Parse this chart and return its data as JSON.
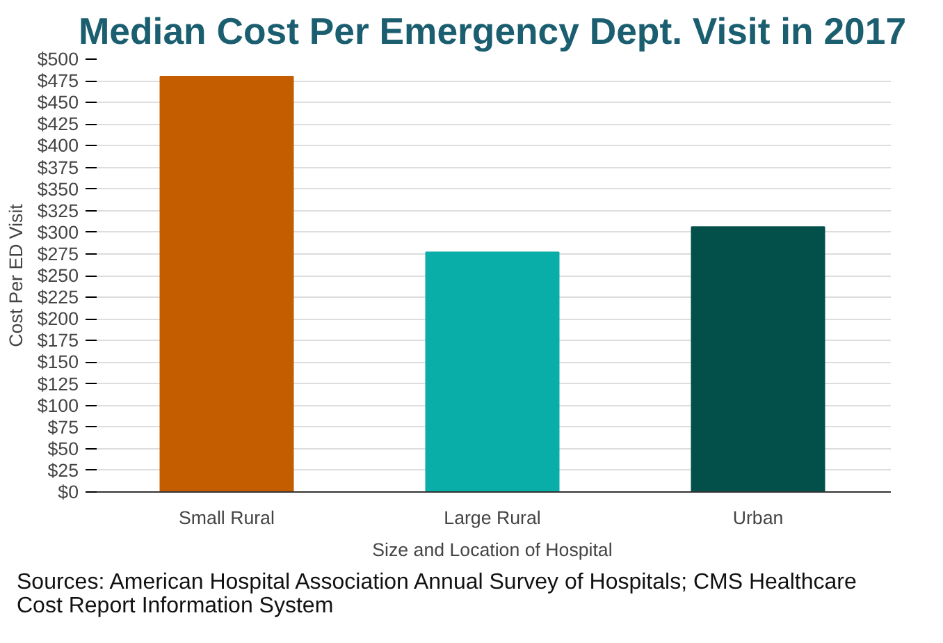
{
  "chart_data": {
    "type": "bar",
    "title": "Median Cost Per Emergency Dept. Visit in 2017",
    "xlabel": "Size and Location of Hospital",
    "ylabel": "Cost Per ED Visit",
    "categories": [
      "Small Rural",
      "Large Rural",
      "Urban"
    ],
    "values": [
      480,
      277,
      306
    ],
    "colors": [
      "#c45c00",
      "#0aaea8",
      "#034f4a"
    ],
    "ylim": [
      0,
      500
    ],
    "yticks": [
      {
        "value": 0,
        "label": "$0"
      },
      {
        "value": 25,
        "label": "$25"
      },
      {
        "value": 50,
        "label": "$50"
      },
      {
        "value": 75,
        "label": "$75"
      },
      {
        "value": 100,
        "label": "$100"
      },
      {
        "value": 125,
        "label": "$125"
      },
      {
        "value": 150,
        "label": "$150"
      },
      {
        "value": 175,
        "label": "$175"
      },
      {
        "value": 200,
        "label": "$200"
      },
      {
        "value": 225,
        "label": "$225"
      },
      {
        "value": 250,
        "label": "$250"
      },
      {
        "value": 275,
        "label": "$275"
      },
      {
        "value": 300,
        "label": "$300"
      },
      {
        "value": 325,
        "label": "$325"
      },
      {
        "value": 350,
        "label": "$350"
      },
      {
        "value": 375,
        "label": "$375"
      },
      {
        "value": 400,
        "label": "$400"
      },
      {
        "value": 425,
        "label": "$425"
      },
      {
        "value": 450,
        "label": "$450"
      },
      {
        "value": 475,
        "label": "$475"
      },
      {
        "value": 500,
        "label": "$500"
      }
    ],
    "grid": "y",
    "annotations": [
      "Sources: American Hospital Association Annual Survey of Hospitals; CMS Healthcare Cost Report Information System"
    ]
  }
}
